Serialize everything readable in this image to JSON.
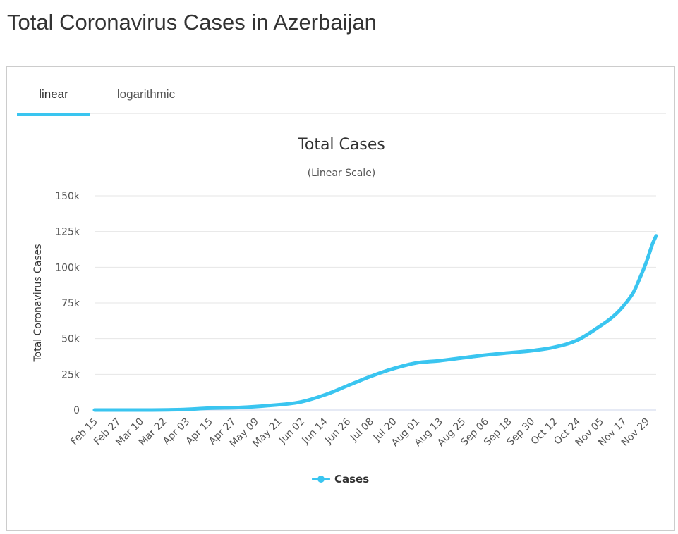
{
  "page": {
    "title": "Total Coronavirus Cases in Azerbaijan"
  },
  "tabs": [
    {
      "label": "linear",
      "active": true
    },
    {
      "label": "logarithmic",
      "active": false
    }
  ],
  "colors": {
    "series": "#3ac5f0",
    "tab_underline": "#3ac5f0",
    "grid": "#e6e6e6"
  },
  "chart_data": {
    "type": "line",
    "title": "Total Cases",
    "subtitle": "(Linear Scale)",
    "ylabel": "Total Coronavirus Cases",
    "xlabel": "",
    "ylim": [
      0,
      150000
    ],
    "yticks": [
      {
        "value": 0,
        "label": "0"
      },
      {
        "value": 25000,
        "label": "25k"
      },
      {
        "value": 50000,
        "label": "50k"
      },
      {
        "value": 75000,
        "label": "75k"
      },
      {
        "value": 100000,
        "label": "100k"
      },
      {
        "value": 125000,
        "label": "125k"
      },
      {
        "value": 150000,
        "label": "150k"
      }
    ],
    "x_range": [
      "Feb 15",
      "Dec 04"
    ],
    "xtick_labels": [
      "Feb 15",
      "Feb 27",
      "Mar 10",
      "Mar 22",
      "Apr 03",
      "Apr 15",
      "Apr 27",
      "May 09",
      "May 21",
      "Jun 02",
      "Jun 14",
      "Jun 26",
      "Jul 08",
      "Jul 20",
      "Aug 01",
      "Aug 13",
      "Aug 25",
      "Sep 06",
      "Sep 18",
      "Sep 30",
      "Oct 12",
      "Oct 24",
      "Nov 05",
      "Nov 17",
      "Nov 29"
    ],
    "grid": true,
    "legend": {
      "position": "bottom-center"
    },
    "series": [
      {
        "name": "Cases",
        "x": [
          "Feb 15",
          "Mar 01",
          "Mar 15",
          "Mar 31",
          "Apr 15",
          "May 01",
          "May 15",
          "Jun 01",
          "Jun 15",
          "Jun 26",
          "Jul 08",
          "Jul 20",
          "Aug 01",
          "Aug 13",
          "Aug 25",
          "Sep 06",
          "Sep 18",
          "Sep 30",
          "Oct 12",
          "Oct 24",
          "Nov 05",
          "Nov 12",
          "Nov 17",
          "Nov 22",
          "Nov 26",
          "Nov 29",
          "Dec 02",
          "Dec 04"
        ],
        "values": [
          0,
          0,
          20,
          300,
          1300,
          1800,
          3000,
          5500,
          11000,
          17000,
          23500,
          29000,
          33000,
          34500,
          36500,
          38500,
          40000,
          41500,
          44000,
          49000,
          59000,
          66000,
          73000,
          82000,
          94000,
          104000,
          116000,
          122000
        ]
      }
    ]
  }
}
